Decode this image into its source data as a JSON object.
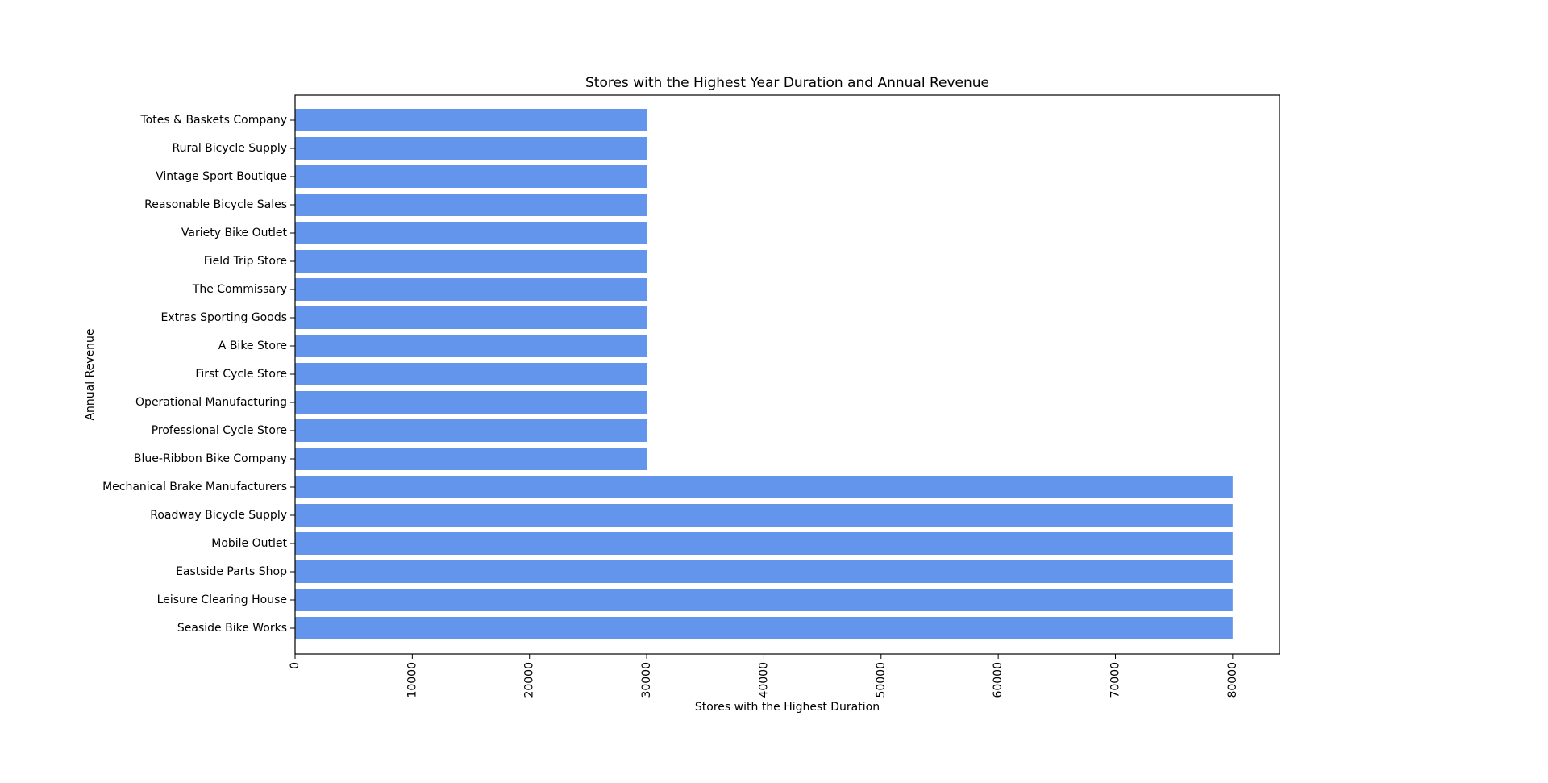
{
  "chart_data": {
    "type": "bar",
    "orientation": "horizontal",
    "title": "Stores with the Highest Year Duration and Annual Revenue",
    "xlabel": "Stores with the Highest Duration",
    "ylabel": "Annual Revenue",
    "xlim": [
      0,
      84000
    ],
    "xticks": [
      0,
      10000,
      20000,
      30000,
      40000,
      50000,
      60000,
      70000,
      80000
    ],
    "xtick_rotation": "vertical",
    "grid": false,
    "legend": "none",
    "bar_color": "#6495ED",
    "categories": [
      "Seaside Bike Works",
      "Leisure Clearing House",
      "Eastside Parts Shop",
      "Mobile Outlet",
      "Roadway Bicycle Supply",
      "Mechanical Brake Manufacturers",
      "Blue-Ribbon Bike Company",
      "Professional Cycle Store",
      "Operational Manufacturing",
      "First Cycle Store",
      "A Bike Store",
      "Extras Sporting Goods",
      "The Commissary",
      "Field Trip Store",
      "Variety Bike Outlet",
      "Reasonable Bicycle Sales",
      "Vintage Sport Boutique",
      "Rural Bicycle Supply",
      "Totes & Baskets Company"
    ],
    "values": [
      80000,
      80000,
      80000,
      80000,
      80000,
      80000,
      30000,
      30000,
      30000,
      30000,
      30000,
      30000,
      30000,
      30000,
      30000,
      30000,
      30000,
      30000,
      30000
    ]
  }
}
